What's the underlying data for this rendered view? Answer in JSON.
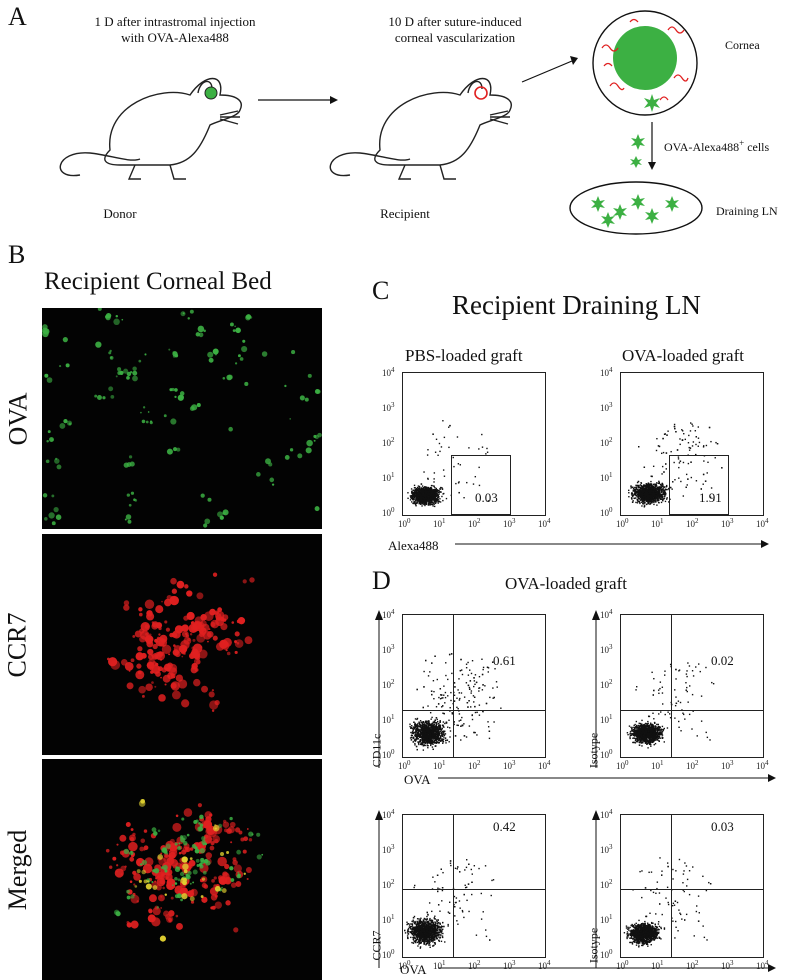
{
  "panelA": {
    "letter": "A",
    "donor_caption_line1": "1 D after intrastromal injection",
    "donor_caption_line2": "with OVA-Alexa488",
    "recipient_caption_line1": "10 D after suture-induced",
    "recipient_caption_line2": "corneal vascularization",
    "donor_label": "Donor",
    "recipient_label": "Recipient",
    "cornea_label": "Cornea",
    "cells_label_main": "OVA-Alexa488",
    "cells_label_sup": "+",
    "cells_label_tail": " cells",
    "ln_label": "Draining LN",
    "colors": {
      "green": "#3cb043",
      "red": "#e02020"
    }
  },
  "panelB": {
    "letter": "B",
    "title": "Recipient Corneal Bed",
    "rows": [
      {
        "label": "OVA",
        "channel": "green"
      },
      {
        "label": "CCR7",
        "channel": "red"
      },
      {
        "label": "Merged",
        "channel": "merged"
      }
    ]
  },
  "panelC": {
    "letter": "C",
    "title": "Recipient Draining LN",
    "left_title": "PBS-loaded graft",
    "right_title": "OVA-loaded graft",
    "left_value": "0.03",
    "right_value": "1.91",
    "x_axis_label": "Alexa488"
  },
  "panelD": {
    "letter": "D",
    "title": "OVA-loaded graft",
    "top_left_value": "0.61",
    "top_right_value": "0.02",
    "bottom_left_value": "0.42",
    "bottom_right_value": "0.03",
    "y_labels": [
      "CD11c",
      "Isotype",
      "CCR7",
      "Isotype"
    ],
    "x_axis_label": "OVA"
  },
  "axis_ticks": {
    "x": [
      "10",
      "10",
      "10",
      "10",
      "10"
    ],
    "x_exp": [
      "0",
      "1",
      "2",
      "3",
      "4"
    ],
    "y": [
      "10",
      "10",
      "10",
      "10",
      "10"
    ],
    "y_exp": [
      "4",
      "3",
      "2",
      "1",
      "0"
    ]
  }
}
